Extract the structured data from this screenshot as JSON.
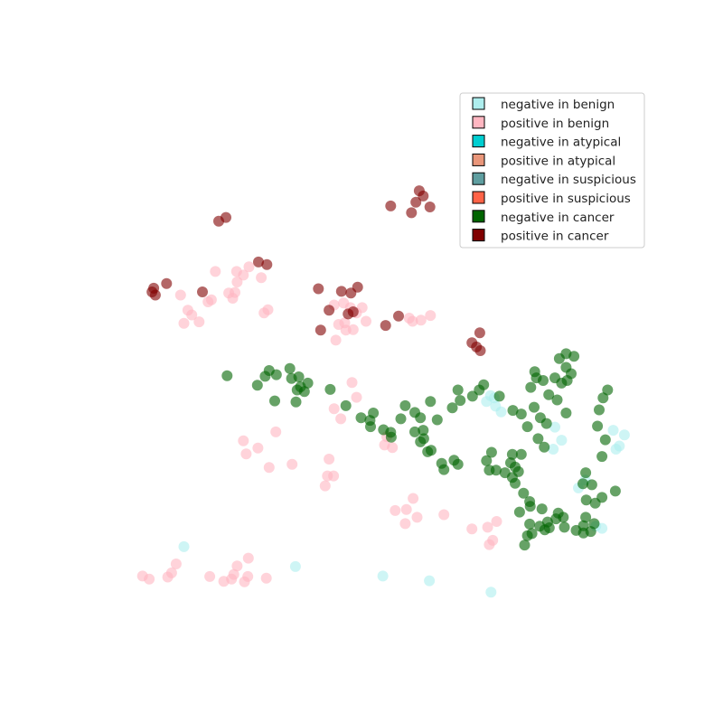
{
  "chart_data": {
    "type": "scatter",
    "title": "",
    "xlabel": "",
    "ylabel": "",
    "axes_visible": false,
    "grid": false,
    "xlim": [
      0,
      100
    ],
    "ylim": [
      0,
      100
    ],
    "legend_position": "top-right",
    "series": [
      {
        "name": "negative in benign",
        "color": "#aeeeee",
        "marker": "circle",
        "alpha": 0.6,
        "points": [
          [
            71.4,
            45.2
          ],
          [
            70.7,
            44.1
          ],
          [
            72.3,
            43.2
          ],
          [
            73.3,
            42.1
          ],
          [
            72.1,
            44.8
          ],
          [
            82.9,
            39.2
          ],
          [
            84.1,
            36.7
          ],
          [
            82.6,
            35.0
          ],
          [
            93.3,
            38.6
          ],
          [
            95.3,
            37.7
          ],
          [
            94.4,
            35.6
          ],
          [
            93.8,
            35.0
          ],
          [
            88.3,
            29.1
          ],
          [
            87.1,
            27.6
          ],
          [
            90.2,
            20.3
          ],
          [
            91.3,
            19.9
          ],
          [
            16.7,
            16.4
          ],
          [
            36.6,
            12.6
          ],
          [
            52.2,
            10.8
          ],
          [
            60.5,
            9.9
          ],
          [
            71.5,
            7.7
          ]
        ]
      },
      {
        "name": "positive in benign",
        "color": "#ffb6c1",
        "marker": "circle",
        "alpha": 0.6,
        "points": [
          [
            28.3,
            69.8
          ],
          [
            26.1,
            68.9
          ],
          [
            27.3,
            68.2
          ],
          [
            30.5,
            67.7
          ],
          [
            22.3,
            68.9
          ],
          [
            26.2,
            66.9
          ],
          [
            25.8,
            64.9
          ],
          [
            25.4,
            63.8
          ],
          [
            21.6,
            63.5
          ],
          [
            21.0,
            63.1
          ],
          [
            24.7,
            64.8
          ],
          [
            16.1,
            64.4
          ],
          [
            17.4,
            61.5
          ],
          [
            18.1,
            60.6
          ],
          [
            19.4,
            59.3
          ],
          [
            16.7,
            59.0
          ],
          [
            31.7,
            61.6
          ],
          [
            31.0,
            61.0
          ],
          [
            43.5,
            62.5
          ],
          [
            45.2,
            62.9
          ],
          [
            46.4,
            62.0
          ],
          [
            47.5,
            61.0
          ],
          [
            48.5,
            62.0
          ],
          [
            44.3,
            58.8
          ],
          [
            45.4,
            59.1
          ],
          [
            45.6,
            57.7
          ],
          [
            46.9,
            57.8
          ],
          [
            43.8,
            55.8
          ],
          [
            49.2,
            59.4
          ],
          [
            56.9,
            60.0
          ],
          [
            57.5,
            59.4
          ],
          [
            59.0,
            59.6
          ],
          [
            60.7,
            60.5
          ],
          [
            46.7,
            47.7
          ],
          [
            47.5,
            44.9
          ],
          [
            43.5,
            42.7
          ],
          [
            44.7,
            40.8
          ],
          [
            52.9,
            37.4
          ],
          [
            52.5,
            35.8
          ],
          [
            53.9,
            35.3
          ],
          [
            27.3,
            36.6
          ],
          [
            27.8,
            34.1
          ],
          [
            33.1,
            38.3
          ],
          [
            29.9,
            35.2
          ],
          [
            42.6,
            33.1
          ],
          [
            36.0,
            32.1
          ],
          [
            31.9,
            31.5
          ],
          [
            42.3,
            29.9
          ],
          [
            43.4,
            29.9
          ],
          [
            41.9,
            28.0
          ],
          [
            57.6,
            25.6
          ],
          [
            54.4,
            23.3
          ],
          [
            56.4,
            23.5
          ],
          [
            56.2,
            20.8
          ],
          [
            58.3,
            22.0
          ],
          [
            63.1,
            22.5
          ],
          [
            68.1,
            19.8
          ],
          [
            70.9,
            20.1
          ],
          [
            72.5,
            21.2
          ],
          [
            71.8,
            17.6
          ],
          [
            71.2,
            16.8
          ],
          [
            28.2,
            14.2
          ],
          [
            26.2,
            12.7
          ],
          [
            25.6,
            11.1
          ],
          [
            25.2,
            10.2
          ],
          [
            23.8,
            9.8
          ],
          [
            21.3,
            10.7
          ],
          [
            9.3,
            10.8
          ],
          [
            10.5,
            10.2
          ],
          [
            27.5,
            9.7
          ],
          [
            28.1,
            10.7
          ],
          [
            31.4,
            10.4
          ],
          [
            15.3,
            13.1
          ],
          [
            14.5,
            11.4
          ],
          [
            13.8,
            10.6
          ]
        ]
      },
      {
        "name": "negative in atypical",
        "color": "#00ced1",
        "marker": "circle",
        "alpha": 0.6,
        "points": []
      },
      {
        "name": "positive in atypical",
        "color": "#e9967a",
        "marker": "circle",
        "alpha": 0.6,
        "points": []
      },
      {
        "name": "negative in suspicious",
        "color": "#5f9ea0",
        "marker": "circle",
        "alpha": 0.6,
        "points": []
      },
      {
        "name": "positive in suspicious",
        "color": "#ff6347",
        "marker": "circle",
        "alpha": 0.6,
        "points": []
      },
      {
        "name": "negative in cancer",
        "color": "#006400",
        "marker": "circle",
        "alpha": 0.6,
        "points": [
          [
            24.4,
            49.0
          ],
          [
            29.8,
            47.2
          ],
          [
            31.2,
            48.9
          ],
          [
            31.9,
            50.0
          ],
          [
            33.2,
            49.2
          ],
          [
            35.6,
            50.4
          ],
          [
            35.9,
            48.5
          ],
          [
            37.2,
            48.8
          ],
          [
            37.5,
            46.9
          ],
          [
            36.9,
            46.3
          ],
          [
            38.8,
            47.6
          ],
          [
            38.2,
            46.0
          ],
          [
            32.9,
            44.2
          ],
          [
            36.7,
            44.0
          ],
          [
            42.8,
            46.4
          ],
          [
            45.6,
            43.3
          ],
          [
            48.3,
            41.0
          ],
          [
            49.9,
            40.5
          ],
          [
            50.5,
            41.9
          ],
          [
            50.0,
            39.3
          ],
          [
            53.6,
            38.2
          ],
          [
            52.3,
            38.7
          ],
          [
            53.7,
            37.3
          ],
          [
            59.4,
            38.6
          ],
          [
            55.4,
            40.8
          ],
          [
            57.9,
            38.3
          ],
          [
            58.9,
            36.4
          ],
          [
            60.2,
            34.5
          ],
          [
            60.8,
            34.8
          ],
          [
            59.5,
            37.0
          ],
          [
            56.2,
            43.3
          ],
          [
            57.9,
            42.0
          ],
          [
            58.9,
            41.0
          ],
          [
            61.9,
            40.6
          ],
          [
            60.7,
            44.1
          ],
          [
            64.6,
            42.9
          ],
          [
            66.0,
            44.3
          ],
          [
            68.2,
            45.1
          ],
          [
            69.4,
            46.3
          ],
          [
            70.2,
            47.3
          ],
          [
            65.6,
            46.3
          ],
          [
            73.0,
            45.1
          ],
          [
            75.4,
            42.4
          ],
          [
            76.9,
            41.7
          ],
          [
            78.0,
            39.3
          ],
          [
            79.9,
            37.0
          ],
          [
            81.0,
            35.4
          ],
          [
            81.4,
            39.9
          ],
          [
            80.3,
            41.0
          ],
          [
            79.2,
            43.0
          ],
          [
            78.6,
            46.8
          ],
          [
            80.8,
            48.1
          ],
          [
            81.8,
            45.4
          ],
          [
            82.9,
            48.6
          ],
          [
            84.1,
            47.6
          ],
          [
            84.9,
            50.6
          ],
          [
            85.8,
            49.4
          ],
          [
            83.7,
            52.3
          ],
          [
            84.9,
            53.2
          ],
          [
            85.1,
            48.1
          ],
          [
            86.3,
            52.7
          ],
          [
            79.6,
            48.6
          ],
          [
            79.3,
            49.8
          ],
          [
            83.3,
            44.4
          ],
          [
            84.9,
            41.9
          ],
          [
            92.3,
            46.3
          ],
          [
            91.5,
            44.8
          ],
          [
            90.8,
            42.5
          ],
          [
            90.5,
            39.4
          ],
          [
            91.9,
            36.8
          ],
          [
            91.3,
            33.6
          ],
          [
            88.4,
            30.5
          ],
          [
            87.9,
            28.4
          ],
          [
            89.5,
            28.2
          ],
          [
            71.6,
            34.4
          ],
          [
            70.7,
            32.8
          ],
          [
            72.4,
            31.0
          ],
          [
            74.0,
            30.5
          ],
          [
            75.3,
            34.0
          ],
          [
            75.0,
            32.4
          ],
          [
            75.8,
            31.6
          ],
          [
            71.2,
            31.0
          ],
          [
            63.1,
            31.1
          ],
          [
            62.7,
            32.3
          ],
          [
            64.9,
            32.9
          ],
          [
            65.6,
            32.1
          ],
          [
            76.9,
            34.0
          ],
          [
            76.4,
            30.7
          ],
          [
            75.3,
            29.6
          ],
          [
            75.8,
            28.5
          ],
          [
            77.3,
            26.6
          ],
          [
            78.4,
            25.0
          ],
          [
            80.6,
            23.6
          ],
          [
            83.1,
            21.7
          ],
          [
            84.4,
            22.0
          ],
          [
            84.6,
            20.1
          ],
          [
            86.7,
            19.5
          ],
          [
            88.0,
            20.4
          ],
          [
            89.3,
            19.3
          ],
          [
            89.9,
            20.8
          ],
          [
            88.0,
            19.0
          ],
          [
            88.4,
            22.0
          ],
          [
            88.5,
            25.3
          ],
          [
            90.1,
            24.7
          ],
          [
            91.3,
            25.8
          ],
          [
            93.7,
            27.0
          ],
          [
            78.5,
            24.1
          ],
          [
            83.5,
            22.8
          ],
          [
            76.6,
            23.0
          ],
          [
            78.4,
            20.7
          ],
          [
            80.2,
            20.3
          ],
          [
            81.6,
            21.1
          ],
          [
            81.9,
            20.0
          ],
          [
            81.1,
            19.6
          ],
          [
            78.8,
            18.9
          ],
          [
            78.0,
            18.5
          ],
          [
            77.5,
            16.7
          ]
        ]
      },
      {
        "name": "positive in cancer",
        "color": "#800000",
        "marker": "circle",
        "alpha": 0.6,
        "points": [
          [
            42.6,
            61.5
          ],
          [
            46.0,
            60.8
          ],
          [
            46.9,
            61.2
          ],
          [
            41.1,
            57.7
          ],
          [
            52.7,
            58.6
          ],
          [
            55.0,
            60.4
          ],
          [
            30.0,
            70.7
          ],
          [
            31.5,
            70.2
          ],
          [
            13.6,
            66.6
          ],
          [
            11.3,
            65.7
          ],
          [
            11.0,
            65.0
          ],
          [
            11.6,
            64.4
          ],
          [
            20.0,
            65.0
          ],
          [
            40.7,
            65.6
          ],
          [
            44.8,
            65.1
          ],
          [
            46.5,
            64.8
          ],
          [
            47.7,
            65.9
          ],
          [
            22.9,
            78.5
          ],
          [
            24.2,
            79.2
          ],
          [
            53.6,
            81.4
          ],
          [
            57.3,
            80.1
          ],
          [
            58.1,
            82.1
          ],
          [
            60.6,
            81.2
          ],
          [
            58.7,
            84.3
          ],
          [
            59.4,
            83.3
          ],
          [
            68.9,
            54.5
          ],
          [
            69.5,
            57.2
          ],
          [
            69.6,
            53.8
          ],
          [
            68.1,
            55.3
          ]
        ]
      }
    ]
  },
  "legend": {
    "items": [
      {
        "label": "negative in benign",
        "color": "#aeeeee"
      },
      {
        "label": "positive in benign",
        "color": "#ffb6c1"
      },
      {
        "label": "negative in atypical",
        "color": "#00ced1"
      },
      {
        "label": "positive in atypical",
        "color": "#e9967a"
      },
      {
        "label": "negative in suspicious",
        "color": "#5f9ea0"
      },
      {
        "label": "positive in suspicious",
        "color": "#ff6347"
      },
      {
        "label": "negative in cancer",
        "color": "#006400"
      },
      {
        "label": "positive in cancer",
        "color": "#800000"
      }
    ]
  }
}
